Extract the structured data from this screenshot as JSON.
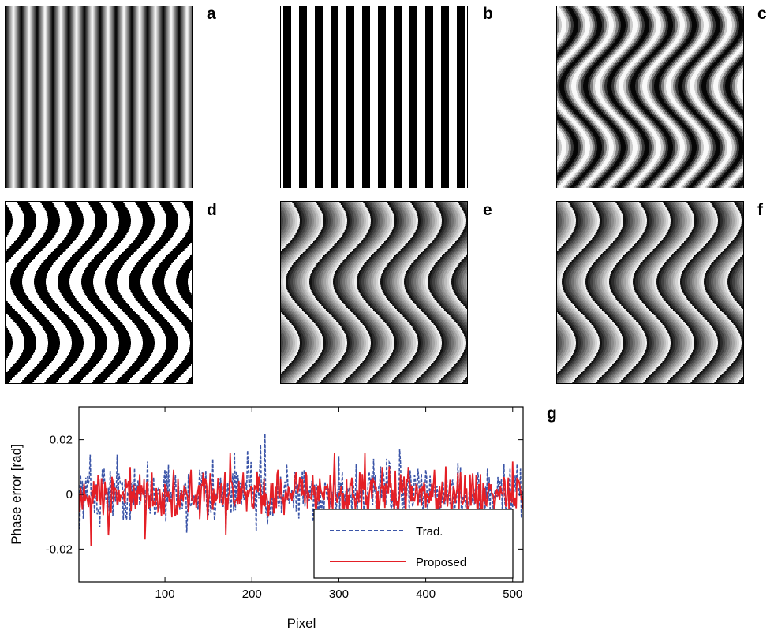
{
  "panels": [
    {
      "id": "a",
      "label": "a",
      "kind": "cosine-straight",
      "period": 20
    },
    {
      "id": "b",
      "label": "b",
      "kind": "square-straight",
      "period": 20
    },
    {
      "id": "c",
      "label": "c",
      "kind": "cosine-wavy",
      "period": 30
    },
    {
      "id": "d",
      "label": "d",
      "kind": "binary-wavy",
      "period": 30
    },
    {
      "id": "e",
      "label": "e",
      "kind": "wrapped-phase",
      "period": 30
    },
    {
      "id": "f",
      "label": "f",
      "kind": "wrapped-phase",
      "period": 30
    }
  ],
  "plot_label": "g",
  "chart_data": {
    "type": "line",
    "xlabel": "Pixel",
    "ylabel": "Phase error [rad]",
    "xlim": [
      1,
      512
    ],
    "ylim": [
      -0.032,
      0.032
    ],
    "xticks": [
      100,
      200,
      300,
      400,
      500
    ],
    "yticks": [
      -0.02,
      0,
      0.02
    ],
    "ytick_labels": [
      "-0.02",
      "0",
      "0.02"
    ],
    "legend": "bottom-right",
    "series": [
      {
        "name": "Trad.",
        "style": "dashed",
        "color": "#3b55a8",
        "amplitude": 0.0065,
        "peaks": [
          [
            14,
            0.0145
          ],
          [
            25,
            -0.012
          ],
          [
            30,
            0.0095
          ],
          [
            45,
            0.0145
          ],
          [
            60,
            -0.0095
          ],
          [
            80,
            0.012
          ],
          [
            100,
            0.009
          ],
          [
            125,
            -0.014
          ],
          [
            140,
            0.009
          ],
          [
            155,
            0.013
          ],
          [
            170,
            -0.013
          ],
          [
            180,
            0.015
          ],
          [
            195,
            0.016
          ],
          [
            205,
            -0.0135
          ],
          [
            210,
            0.018
          ],
          [
            215,
            0.022
          ],
          [
            218,
            -0.011
          ],
          [
            240,
            0.011
          ],
          [
            260,
            0.009
          ],
          [
            270,
            -0.01
          ],
          [
            300,
            0.014
          ],
          [
            320,
            0.011
          ],
          [
            340,
            0.013
          ],
          [
            355,
            0.013
          ],
          [
            370,
            0.0165
          ],
          [
            380,
            0.01
          ],
          [
            400,
            0.009
          ],
          [
            440,
            0.01
          ],
          [
            460,
            0.008
          ],
          [
            490,
            0.011
          ],
          [
            505,
            0.011
          ]
        ]
      },
      {
        "name": "Proposed",
        "style": "solid",
        "color": "#e41f26",
        "amplitude": 0.0055,
        "peaks": [
          [
            15,
            -0.019
          ],
          [
            35,
            -0.015
          ],
          [
            60,
            0.01
          ],
          [
            77,
            -0.0165
          ],
          [
            85,
            0.008
          ],
          [
            110,
            0.009
          ],
          [
            130,
            0.009
          ],
          [
            170,
            -0.015
          ],
          [
            175,
            0.015
          ],
          [
            190,
            0.008
          ],
          [
            230,
            0.009
          ],
          [
            250,
            0.007
          ],
          [
            270,
            0.007
          ],
          [
            295,
            0.015
          ],
          [
            330,
            0.015
          ],
          [
            350,
            0.01
          ],
          [
            380,
            0.01
          ],
          [
            410,
            0.009
          ],
          [
            445,
            0.007
          ],
          [
            500,
            0.012
          ]
        ]
      }
    ]
  }
}
